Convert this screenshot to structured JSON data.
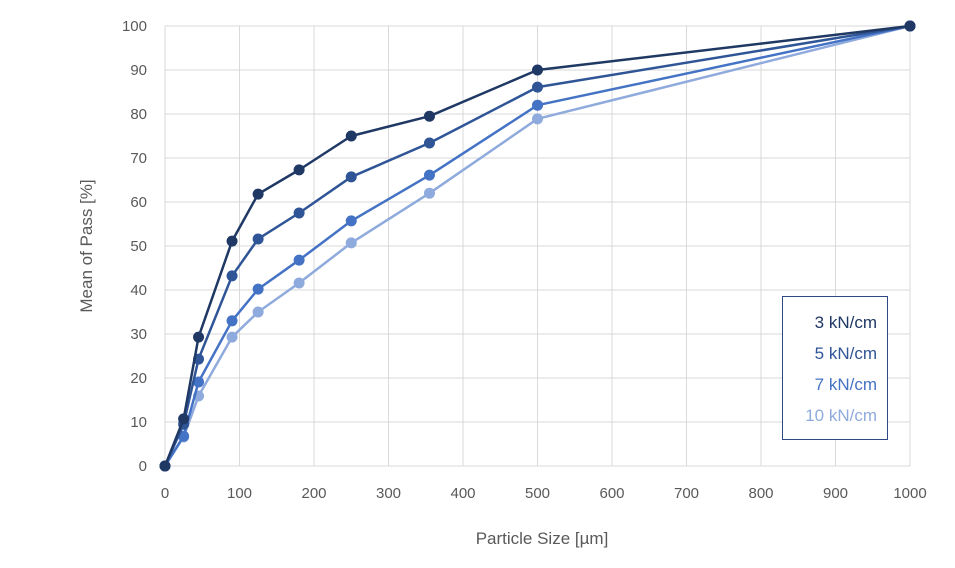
{
  "chart_data": {
    "type": "line",
    "title": "",
    "xlabel": "Particle Size [µm]",
    "ylabel": "Mean of Pass [%]",
    "xlim": [
      0,
      1000
    ],
    "ylim": [
      0,
      100
    ],
    "xticks": [
      0,
      100,
      200,
      300,
      400,
      500,
      600,
      700,
      800,
      900,
      1000
    ],
    "yticks": [
      0,
      10,
      20,
      30,
      40,
      50,
      60,
      70,
      80,
      90,
      100
    ],
    "grid": true,
    "legend_position": "bottom-right",
    "x": [
      0,
      25,
      45,
      90,
      125,
      180,
      250,
      355,
      500,
      1000
    ],
    "series": [
      {
        "name": "3 kN/cm",
        "color": "#1f3864",
        "values": [
          0,
          10.7,
          29.3,
          51.1,
          61.8,
          67.3,
          75.0,
          79.5,
          90.0,
          100
        ]
      },
      {
        "name": "5 kN/cm",
        "color": "#2f5597",
        "values": [
          0,
          9.5,
          24.3,
          43.2,
          51.6,
          57.5,
          65.7,
          73.4,
          86.1,
          100
        ]
      },
      {
        "name": "7 kN/cm",
        "color": "#4472c4",
        "values": [
          0,
          6.8,
          19.1,
          33.0,
          40.2,
          46.8,
          55.7,
          66.1,
          82.0,
          100
        ]
      },
      {
        "name": "10 kN/cm",
        "color": "#8faadc",
        "values": [
          0,
          6.6,
          15.9,
          29.3,
          35.0,
          41.6,
          50.7,
          62.0,
          78.9,
          100
        ]
      }
    ]
  }
}
